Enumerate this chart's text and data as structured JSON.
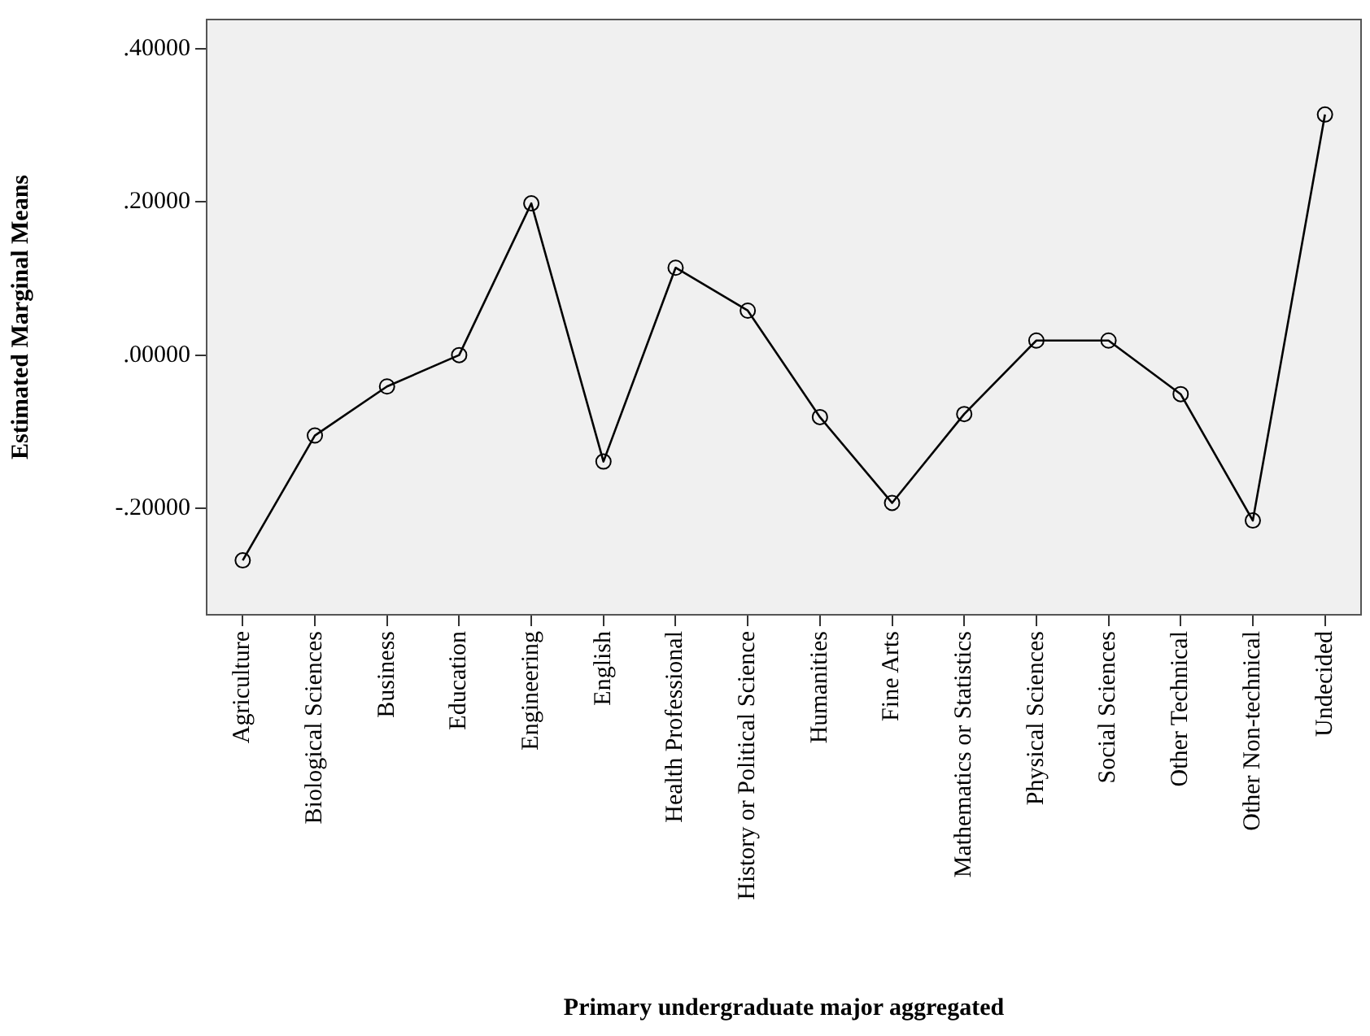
{
  "chart_data": {
    "type": "line",
    "xlabel": "Primary undergraduate major aggregated",
    "ylabel": "Estimated Marginal Means",
    "categories": [
      "Agriculture",
      "Biological Sciences",
      "Business",
      "Education",
      "Engineering",
      "English",
      "Health Professional",
      "History or Political Science",
      "Humanities",
      "Fine Arts",
      "Mathematics or Statistics",
      "Physical Sciences",
      "Social Sciences",
      "Other Technical",
      "Other Non-technical",
      "Undecided"
    ],
    "series": [
      {
        "color": "#000000",
        "values": [
          -0.268,
          -0.105,
          -0.041,
          0.0,
          0.198,
          -0.139,
          0.114,
          0.058,
          -0.081,
          -0.193,
          -0.077,
          0.019,
          0.019,
          -0.051,
          -0.216,
          0.314
        ]
      }
    ],
    "ylim": [
      -0.339,
      0.438
    ],
    "yticks": [
      {
        "value": -0.2,
        "label": "-.20000"
      },
      {
        "value": 0,
        "label": ".00000"
      },
      {
        "value": 0.2,
        "label": ".20000"
      },
      {
        "value": 0.4,
        "label": ".40000"
      }
    ],
    "grid": false,
    "legend": false,
    "marker": "circle",
    "line_style": "solid"
  }
}
